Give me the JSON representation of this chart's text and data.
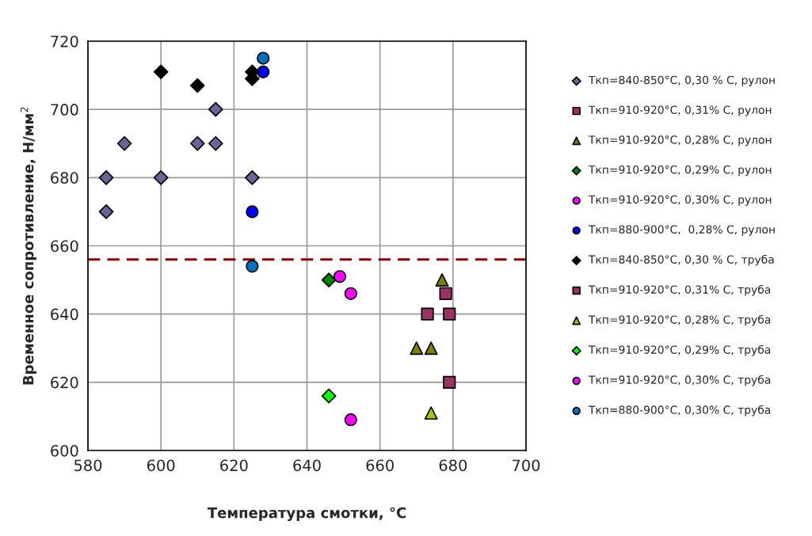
{
  "chart_data": {
    "type": "scatter",
    "xlabel": "Температура смотки, °C",
    "ylabel": "Временное сопротивление, Н/мм$^{2}$",
    "xlim": [
      580,
      700
    ],
    "xticks": [
      580,
      600,
      620,
      640,
      660,
      680,
      700
    ],
    "ylim": [
      600,
      720
    ],
    "yticks": [
      600,
      620,
      640,
      660,
      680,
      700,
      720
    ],
    "grid": true,
    "legend": "right",
    "ref_lines": [
      {
        "axis": "y",
        "value": 656,
        "color": "#8b0000",
        "line_style": "dashed"
      }
    ],
    "series": [
      {
        "name": "Ткп=840-850°C, 0,30 % C, рулон",
        "color": "#666699",
        "marker": "diamond",
        "x": [
          585,
          585,
          590,
          600,
          610,
          615,
          615,
          625
        ],
        "values": [
          680,
          670,
          690,
          680,
          690,
          690,
          700,
          680
        ]
      },
      {
        "name": "Ткп=910-920°C, 0,31% C, рулон",
        "color": "#993366",
        "marker": "square",
        "x": [
          673,
          678,
          679
        ],
        "values": [
          640,
          646,
          620
        ]
      },
      {
        "name": "Ткп=910-920°C, 0,28% C, рулон",
        "color": "#808000",
        "marker": "triangle",
        "x": [
          677,
          670,
          674
        ],
        "values": [
          650,
          630,
          630
        ]
      },
      {
        "name": "Ткп=910-920°C, 0,29% C, рулон",
        "color": "#008000",
        "marker": "diamond",
        "x": [
          646
        ],
        "values": [
          650
        ]
      },
      {
        "name": "Ткп=910-920°C, 0,30% C, рулон",
        "color": "#ff00ff",
        "marker": "circle",
        "x": [
          649,
          652
        ],
        "values": [
          651,
          646
        ]
      },
      {
        "name": "Ткп=880-900°C,  0,28% C, рулон",
        "color": "#0000ff",
        "marker": "circle",
        "x": [
          625,
          628
        ],
        "values": [
          670,
          711
        ]
      },
      {
        "name": "Ткп=840-850°C, 0,30 % C, труба",
        "color": "#000000",
        "marker": "diamond",
        "x": [
          600,
          610,
          625,
          625
        ],
        "values": [
          711,
          707,
          711,
          709
        ]
      },
      {
        "name": "Ткп=910-920°C, 0,31% C, труба",
        "color": "#993366",
        "marker": "square",
        "x": [
          679
        ],
        "values": [
          640
        ]
      },
      {
        "name": "Ткп=910-920°C, 0,28% C, труба",
        "color": "#99cc00",
        "marker": "triangle",
        "x": [
          674
        ],
        "values": [
          611
        ]
      },
      {
        "name": "Ткп=910-920°C, 0,29% C, труба",
        "color": "#00ff00",
        "marker": "diamond",
        "x": [
          646
        ],
        "values": [
          616
        ]
      },
      {
        "name": "Ткп=910-920°C, 0,30% C, труба",
        "color": "#ff00ff",
        "marker": "circle",
        "x": [
          652
        ],
        "values": [
          609
        ]
      },
      {
        "name": "Ткп=880-900°C, 0,30% C, труба",
        "color": "#0070c0",
        "marker": "circle",
        "x": [
          628,
          625
        ],
        "values": [
          715,
          654
        ]
      }
    ]
  }
}
